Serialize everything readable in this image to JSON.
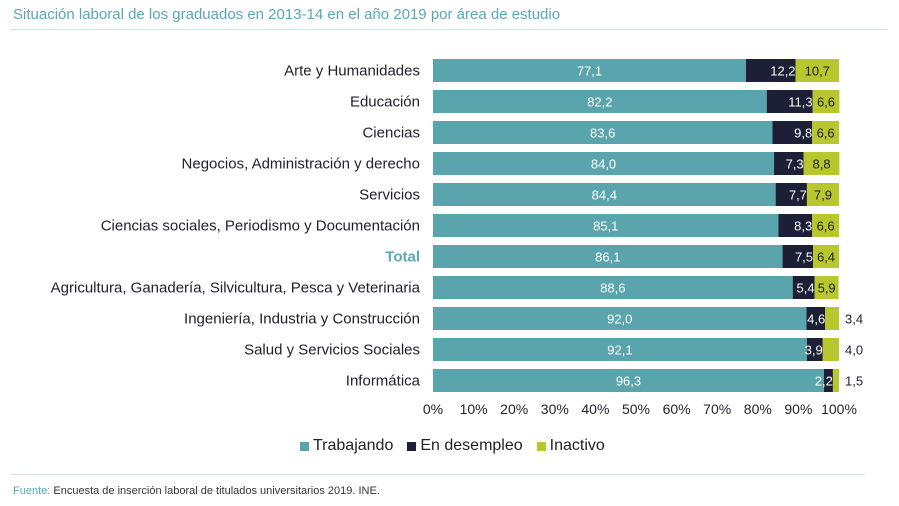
{
  "title": "Situación laboral de los graduados en 2013-14 en el año 2019 por área de estudio",
  "source": {
    "label": "Fuente:",
    "text": "Encuesta de inserción laboral de titulados universitarios 2019. INE."
  },
  "colors": {
    "trabajando": "#5aa5ad",
    "desempleo": "#1d1f36",
    "inactivo": "#b8c72d",
    "highlight": "#5aa8b6"
  },
  "chart_data": {
    "type": "bar",
    "orientation": "horizontal",
    "stacked": true,
    "categories": [
      "Arte y Humanidades",
      "Educación",
      "Ciencias",
      "Negocios, Administración y derecho",
      "Servicios",
      "Ciencias sociales, Periodismo y Documentación",
      "Total",
      "Agricultura, Ganadería, Silvicultura, Pesca y Veterinaria",
      "Ingeniería, Industria y Construcción",
      "Salud y Servicios Sociales",
      "Informática"
    ],
    "highlight_category": "Total",
    "series": [
      {
        "name": "Trabajando",
        "values": [
          77.1,
          82.2,
          83.6,
          84.0,
          84.4,
          85.1,
          86.1,
          88.6,
          92.0,
          92.1,
          96.3
        ],
        "labels": [
          "77,1",
          "82,2",
          "83,6",
          "84,0",
          "84,4",
          "85,1",
          "86,1",
          "88,6",
          "92,0",
          "92,1",
          "96,3"
        ]
      },
      {
        "name": "En desempleo",
        "values": [
          12.2,
          11.3,
          9.8,
          7.3,
          7.7,
          8.3,
          7.5,
          5.4,
          4.6,
          3.9,
          2.2
        ],
        "labels": [
          "12,2",
          "11,3",
          "9,8",
          "7,3",
          "7,7",
          "8,3",
          "7,5",
          "5,4",
          "4,6",
          "3,9",
          "2,2"
        ]
      },
      {
        "name": "Inactivo",
        "values": [
          10.7,
          6.6,
          6.6,
          8.8,
          7.9,
          6.6,
          6.4,
          5.9,
          3.4,
          4.0,
          1.5
        ],
        "labels": [
          "10,7",
          "6,6",
          "6,6",
          "8,8",
          "7,9",
          "6,6",
          "6,4",
          "5,9",
          "3,4",
          "4,0",
          "1,5"
        ]
      }
    ],
    "xlim": [
      0,
      100
    ],
    "xticks": [
      "0%",
      "10%",
      "20%",
      "30%",
      "40%",
      "50%",
      "60%",
      "70%",
      "80%",
      "90%",
      "100%"
    ],
    "grid": false,
    "legend_position": "bottom"
  }
}
